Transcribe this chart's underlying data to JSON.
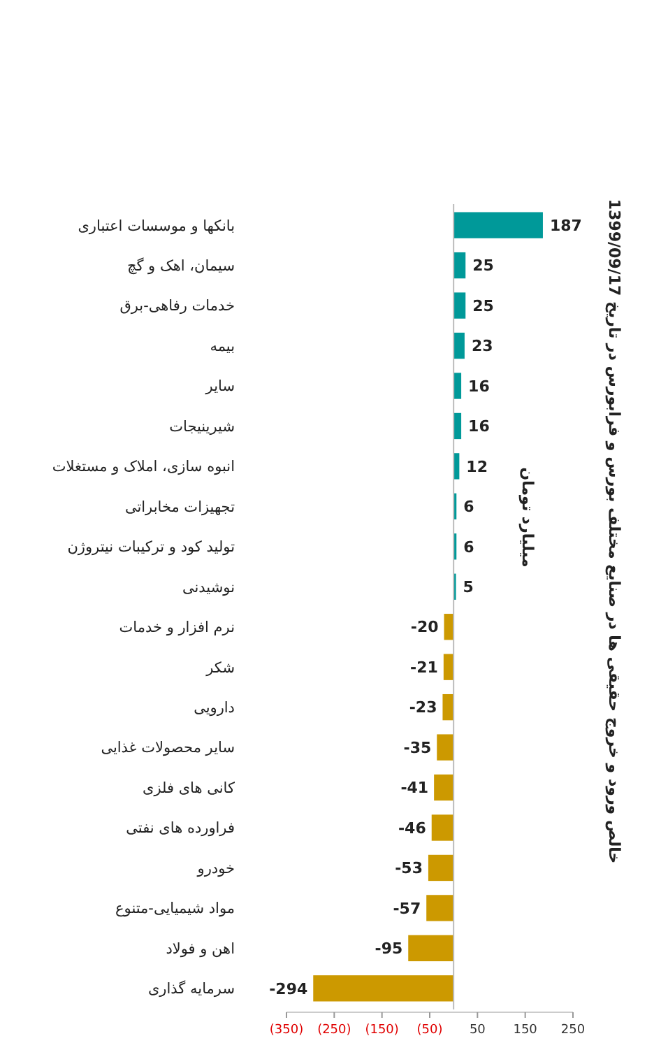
{
  "chart_data": {
    "type": "bar",
    "orientation": "horizontal",
    "title": "خالص ورود و خروج حقیقی ها در صنایع مختلف بورس و فرابورس در تاریخ 1399/09/17",
    "ylabel": "میلیارد تومان",
    "categories": [
      "بانکها و موسسات اعتباری",
      "سیمان، اهک و گچ",
      "خدمات رفاهی-برق",
      "بیمه",
      "سایر",
      "شیرینیجات",
      "انبوه سازی، املاک و مستغلات",
      "تجهیزات مخابراتی",
      "تولید کود و ترکیبات نیتروژن",
      "نوشیدنی",
      "نرم افزار و خدمات",
      "شکر",
      "دارویی",
      "سایر محصولات غذایی",
      "کانی های فلزی",
      "فراورده های نفتی",
      "خودرو",
      "مواد شیمیایی-متنوع",
      "اهن و فولاد",
      "سرمایه گذاری"
    ],
    "values": [
      187,
      25,
      25,
      23,
      16,
      16,
      12,
      6,
      6,
      5,
      -20,
      -21,
      -23,
      -35,
      -41,
      -46,
      -53,
      -57,
      -95,
      -294
    ],
    "colors": [
      "#009999",
      "#009999",
      "#009999",
      "#009999",
      "#009999",
      "#009999",
      "#009999",
      "#009999",
      "#009999",
      "#009999",
      "#cc9900",
      "#cc9900",
      "#cc9900",
      "#cc9900",
      "#cc9900",
      "#cc9900",
      "#cc9900",
      "#cc9900",
      "#cc9900",
      "#cc9900"
    ],
    "data_labels": true,
    "xlim": [
      -350,
      250
    ],
    "xticks": [
      {
        "value": -350,
        "label": "(350)"
      },
      {
        "value": -250,
        "label": "(250)"
      },
      {
        "value": -150,
        "label": "(150)"
      },
      {
        "value": -50,
        "label": "(50)"
      },
      50,
      150,
      250
    ],
    "grid": false
  }
}
